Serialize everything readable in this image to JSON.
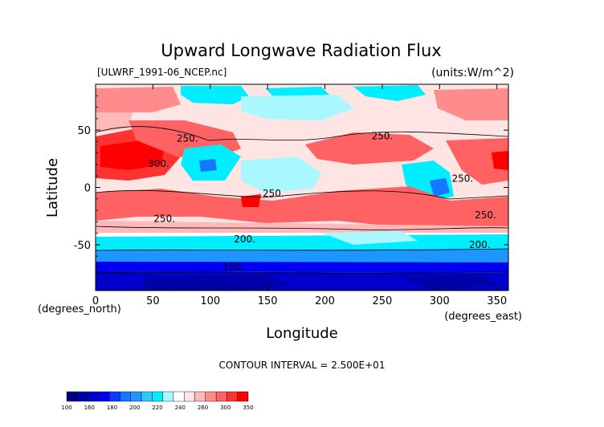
{
  "chart_data": {
    "type": "heatmap",
    "title": "Upward Longwave Radiation Flux",
    "subtitle_left": "[ULWRF_1991-06_NCEP.nc]",
    "subtitle_right": "(units:W/m^2)",
    "xlabel": "Longitude",
    "ylabel": "Latitude",
    "x_unit_label": "(degrees_east)",
    "y_unit_label": "(degrees_north)",
    "xlim": [
      0,
      360
    ],
    "ylim": [
      -90,
      90
    ],
    "x_ticks": [
      0,
      50,
      100,
      150,
      200,
      250,
      300,
      350
    ],
    "y_ticks": [
      -50,
      0,
      50
    ],
    "contour_interval_text": "CONTOUR INTERVAL = 2.500E+01",
    "contour_labels": [
      {
        "text": "250.",
        "lon": 80,
        "lat": 40
      },
      {
        "text": "300.",
        "lon": 55,
        "lat": 18
      },
      {
        "text": "250.",
        "lon": 250,
        "lat": 42
      },
      {
        "text": "250.",
        "lon": 320,
        "lat": 5
      },
      {
        "text": "250.",
        "lon": 155,
        "lat": -8
      },
      {
        "text": "250.",
        "lon": 60,
        "lat": -30
      },
      {
        "text": "250.",
        "lon": 340,
        "lat": -27
      },
      {
        "text": "200.",
        "lon": 130,
        "lat": -48
      },
      {
        "text": "200.",
        "lon": 335,
        "lat": -53
      },
      {
        "text": "150.",
        "lon": 120,
        "lat": -72
      }
    ],
    "colorbar": {
      "boundaries": [
        100,
        120,
        140,
        160,
        180,
        190,
        200,
        210,
        220,
        230,
        240,
        250,
        260,
        270,
        280,
        300,
        320,
        350
      ],
      "labels": [
        "100",
        "160",
        "180",
        "200",
        "220",
        "240",
        "260",
        "300",
        "350"
      ],
      "colors": [
        "#000080",
        "#0000a8",
        "#0000cc",
        "#0000ee",
        "#0a3cff",
        "#1478ff",
        "#1e96ff",
        "#32c8ff",
        "#00eeff",
        "#aaf8ff",
        "#ffffff",
        "#ffe4e4",
        "#ffb8b8",
        "#ff8c8c",
        "#ff6262",
        "#ff3232",
        "#ff0000"
      ]
    }
  }
}
